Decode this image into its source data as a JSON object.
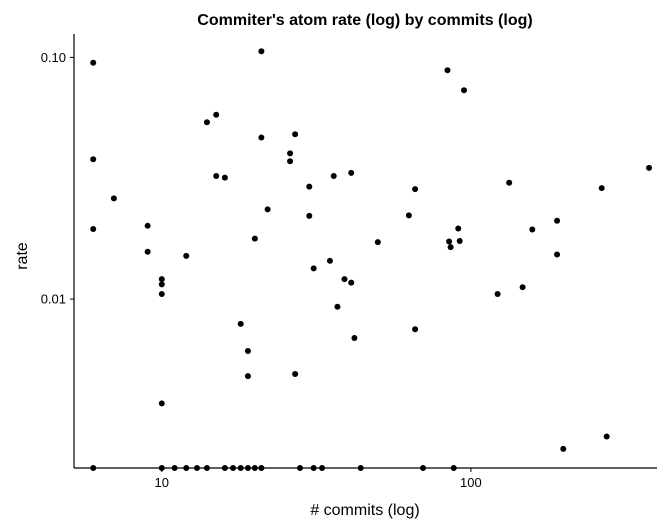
{
  "chart_data": {
    "type": "scatter",
    "title": "Commiter's atom rate (log) by commits (log)",
    "xlabel": "# commits (log)",
    "ylabel": "rate",
    "xscale": "log",
    "yscale": "log",
    "xlim": [
      5.2,
      400
    ],
    "ylim": [
      0.002,
      0.125
    ],
    "grid": false,
    "legend": "none",
    "xticks": [
      {
        "value": 10,
        "label": "10"
      },
      {
        "value": 100,
        "label": "100"
      }
    ],
    "yticks": [
      {
        "value": 0.01,
        "label": "0.01"
      },
      {
        "value": 0.1,
        "label": "0.10"
      }
    ],
    "point_color": "#000000",
    "points": [
      [
        6,
        0.095
      ],
      [
        6,
        0.0379
      ],
      [
        6,
        0.0195
      ],
      [
        6,
        0.002
      ],
      [
        7,
        0.0261
      ],
      [
        9,
        0.0201
      ],
      [
        9,
        0.0157
      ],
      [
        10,
        0.0121
      ],
      [
        10,
        0.0115
      ],
      [
        10,
        0.0105
      ],
      [
        10,
        0.0037
      ],
      [
        10,
        0.002
      ],
      [
        11,
        0.002
      ],
      [
        12,
        0.0151
      ],
      [
        12,
        0.002
      ],
      [
        13,
        0.002
      ],
      [
        14,
        0.0539
      ],
      [
        14,
        0.002
      ],
      [
        15,
        0.0579
      ],
      [
        15,
        0.0323
      ],
      [
        16,
        0.0318
      ],
      [
        16,
        0.002
      ],
      [
        17,
        0.002
      ],
      [
        18,
        0.0079
      ],
      [
        18,
        0.002
      ],
      [
        19,
        0.0061
      ],
      [
        19,
        0.0048
      ],
      [
        19,
        0.002
      ],
      [
        20,
        0.0178
      ],
      [
        20,
        0.002
      ],
      [
        21,
        0.106
      ],
      [
        21,
        0.0466
      ],
      [
        21,
        0.002
      ],
      [
        22,
        0.0235
      ],
      [
        26,
        0.0401
      ],
      [
        26,
        0.0372
      ],
      [
        27,
        0.0481
      ],
      [
        27,
        0.0049
      ],
      [
        28,
        0.002
      ],
      [
        30,
        0.0292
      ],
      [
        30,
        0.0221
      ],
      [
        31,
        0.0134
      ],
      [
        31,
        0.002
      ],
      [
        33,
        0.002
      ],
      [
        35,
        0.0144
      ],
      [
        36,
        0.0323
      ],
      [
        37,
        0.0093
      ],
      [
        39,
        0.0121
      ],
      [
        41,
        0.0333
      ],
      [
        41,
        0.0117
      ],
      [
        42,
        0.0069
      ],
      [
        44,
        0.002
      ],
      [
        50,
        0.0172
      ],
      [
        63,
        0.0222
      ],
      [
        66,
        0.0285
      ],
      [
        66,
        0.0075
      ],
      [
        70,
        0.002
      ],
      [
        84,
        0.0885
      ],
      [
        85,
        0.0173
      ],
      [
        86,
        0.0164
      ],
      [
        88,
        0.002
      ],
      [
        91,
        0.0196
      ],
      [
        92,
        0.0174
      ],
      [
        95,
        0.0731
      ],
      [
        122,
        0.0105
      ],
      [
        133,
        0.0303
      ],
      [
        147,
        0.0112
      ],
      [
        158,
        0.0194
      ],
      [
        190,
        0.0211
      ],
      [
        190,
        0.0153
      ],
      [
        199,
        0.0024
      ],
      [
        265,
        0.0288
      ],
      [
        275,
        0.0027
      ],
      [
        377,
        0.0349
      ]
    ]
  }
}
